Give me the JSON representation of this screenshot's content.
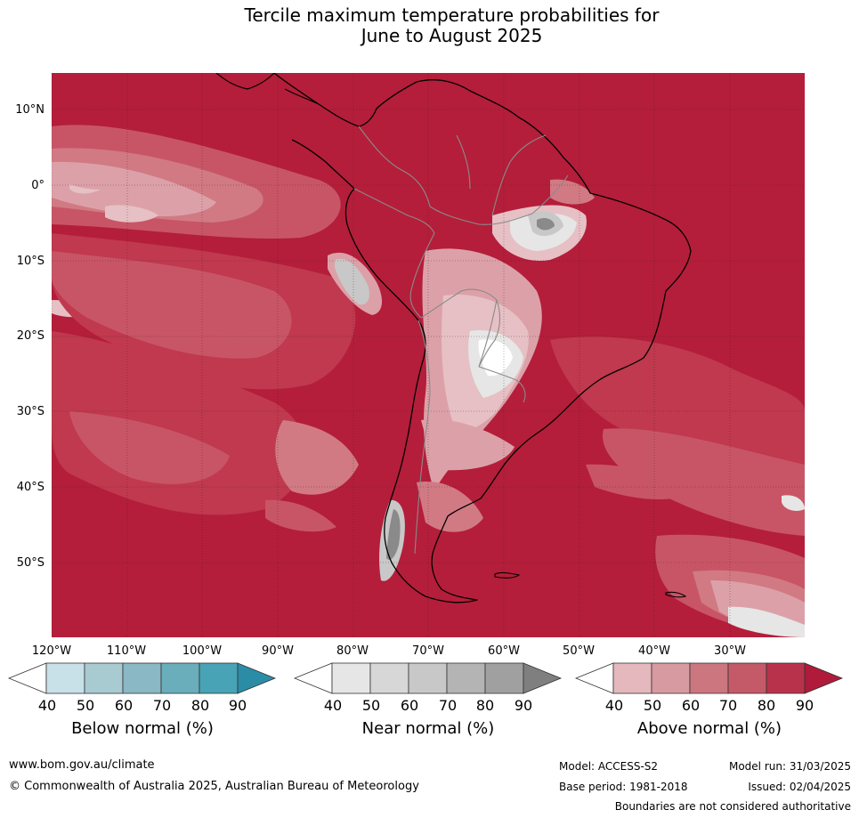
{
  "title_line1": "Tercile maximum temperature probabilities for",
  "title_line2": "June to August 2025",
  "lat_labels": [
    "10°N",
    "0°",
    "10°S",
    "20°S",
    "30°S",
    "40°S",
    "50°S"
  ],
  "lon_labels": [
    "120°W",
    "110°W",
    "100°W",
    "90°W",
    "80°W",
    "70°W",
    "60°W",
    "50°W",
    "40°W",
    "30°W"
  ],
  "legends": [
    {
      "title": "Below normal (%)",
      "ticks": [
        "40",
        "50",
        "60",
        "70",
        "80",
        "90"
      ],
      "colors": [
        "#ffffff",
        "#c8e1e8",
        "#a8cbd2",
        "#8ab8c4",
        "#6aadbb",
        "#47a3b5",
        "#2b8ca6"
      ]
    },
    {
      "title": "Near normal (%)",
      "ticks": [
        "40",
        "50",
        "60",
        "70",
        "80",
        "90"
      ],
      "colors": [
        "#ffffff",
        "#e6e6e6",
        "#d7d7d7",
        "#c8c8c8",
        "#b4b4b4",
        "#a0a0a0",
        "#7f7f7f"
      ]
    },
    {
      "title": "Above normal (%)",
      "ticks": [
        "40",
        "50",
        "60",
        "70",
        "80",
        "90"
      ],
      "colors": [
        "#ffffff",
        "#e4b8bd",
        "#d79aa1",
        "#cc7680",
        "#c45a68",
        "#b8324b",
        "#b01a3b"
      ]
    }
  ],
  "map_colors": {
    "above_90": "#b41e3a",
    "above_80": "#c0394e",
    "above_70": "#c85566",
    "above_60": "#d17a84",
    "above_50": "#dca1a8",
    "above_40": "#e6c0c4",
    "near_50": "#e6e6e6",
    "near_70": "#c8c8c8",
    "near_90": "#8a8a8a"
  },
  "footer": {
    "website": "www.bom.gov.au/climate",
    "copyright": "© Commonwealth of Australia 2025, Australian Bureau of Meteorology",
    "model": "Model: ACCESS-S2",
    "model_run": "Model run: 31/03/2025",
    "base_period": "Base period: 1981-2018",
    "issued": "Issued: 02/04/2025",
    "disclaimer": "Boundaries are not considered authoritative"
  }
}
